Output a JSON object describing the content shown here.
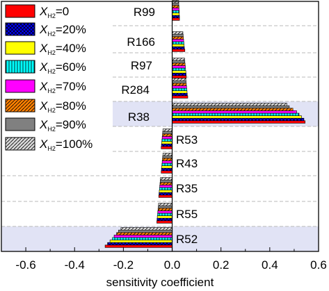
{
  "chart_data": {
    "type": "bar",
    "orientation": "horizontal",
    "xlabel": "sensitivity coefficient",
    "xlim": [
      -0.7,
      0.6
    ],
    "xticks": [
      "-0.6",
      "-0.4",
      "-0.2",
      "0.0",
      "0.2",
      "0.4",
      "0.6"
    ],
    "tick_values": [
      -0.6,
      -0.4,
      -0.2,
      0.0,
      0.2,
      0.4,
      0.6
    ],
    "grid": "horizontal dashed separators",
    "legend_position": "top-left",
    "highlight_color": "#e1e3f5",
    "categories": [
      "R99",
      "R166",
      "R97",
      "R284",
      "R38",
      "R53",
      "R43",
      "R35",
      "R55",
      "R52"
    ],
    "highlighted": [
      "R38",
      "R52"
    ],
    "series": [
      {
        "name": "0",
        "color": "#ff0000",
        "pattern": "solid",
        "values": [
          0.03,
          0.052,
          0.058,
          0.064,
          0.545,
          -0.045,
          -0.045,
          -0.055,
          -0.063,
          -0.275
        ]
      },
      {
        "name": "20%",
        "color": "#0000ff",
        "pattern": "crosshatch",
        "values": [
          0.03,
          0.05,
          0.057,
          0.062,
          0.54,
          -0.044,
          -0.044,
          -0.054,
          -0.062,
          -0.265
        ]
      },
      {
        "name": "40%",
        "color": "#ffff00",
        "pattern": "solid",
        "values": [
          0.029,
          0.049,
          0.056,
          0.061,
          0.53,
          -0.043,
          -0.043,
          -0.053,
          -0.061,
          -0.255
        ]
      },
      {
        "name": "60%",
        "color": "#00ffff",
        "pattern": "vertical",
        "values": [
          0.029,
          0.048,
          0.055,
          0.06,
          0.52,
          -0.042,
          -0.042,
          -0.052,
          -0.06,
          -0.245
        ]
      },
      {
        "name": "70%",
        "color": "#ff00ff",
        "pattern": "solid",
        "values": [
          0.028,
          0.047,
          0.054,
          0.059,
          0.51,
          -0.041,
          -0.041,
          -0.051,
          -0.059,
          -0.238
        ]
      },
      {
        "name": "80%",
        "color": "#ff8000",
        "pattern": "diagonal",
        "values": [
          0.028,
          0.046,
          0.053,
          0.058,
          0.495,
          -0.04,
          -0.04,
          -0.05,
          -0.058,
          -0.228
        ]
      },
      {
        "name": "90%",
        "color": "#808080",
        "pattern": "solid",
        "values": [
          0.027,
          0.045,
          0.052,
          0.057,
          0.48,
          -0.039,
          -0.039,
          -0.049,
          -0.057,
          -0.22
        ]
      },
      {
        "name": "100%",
        "color": "#c0c0c0",
        "pattern": "diagonal-gray",
        "values": [
          0.027,
          0.044,
          0.051,
          0.056,
          0.47,
          -0.038,
          -0.038,
          -0.048,
          -0.056,
          -0.21
        ]
      }
    ]
  }
}
